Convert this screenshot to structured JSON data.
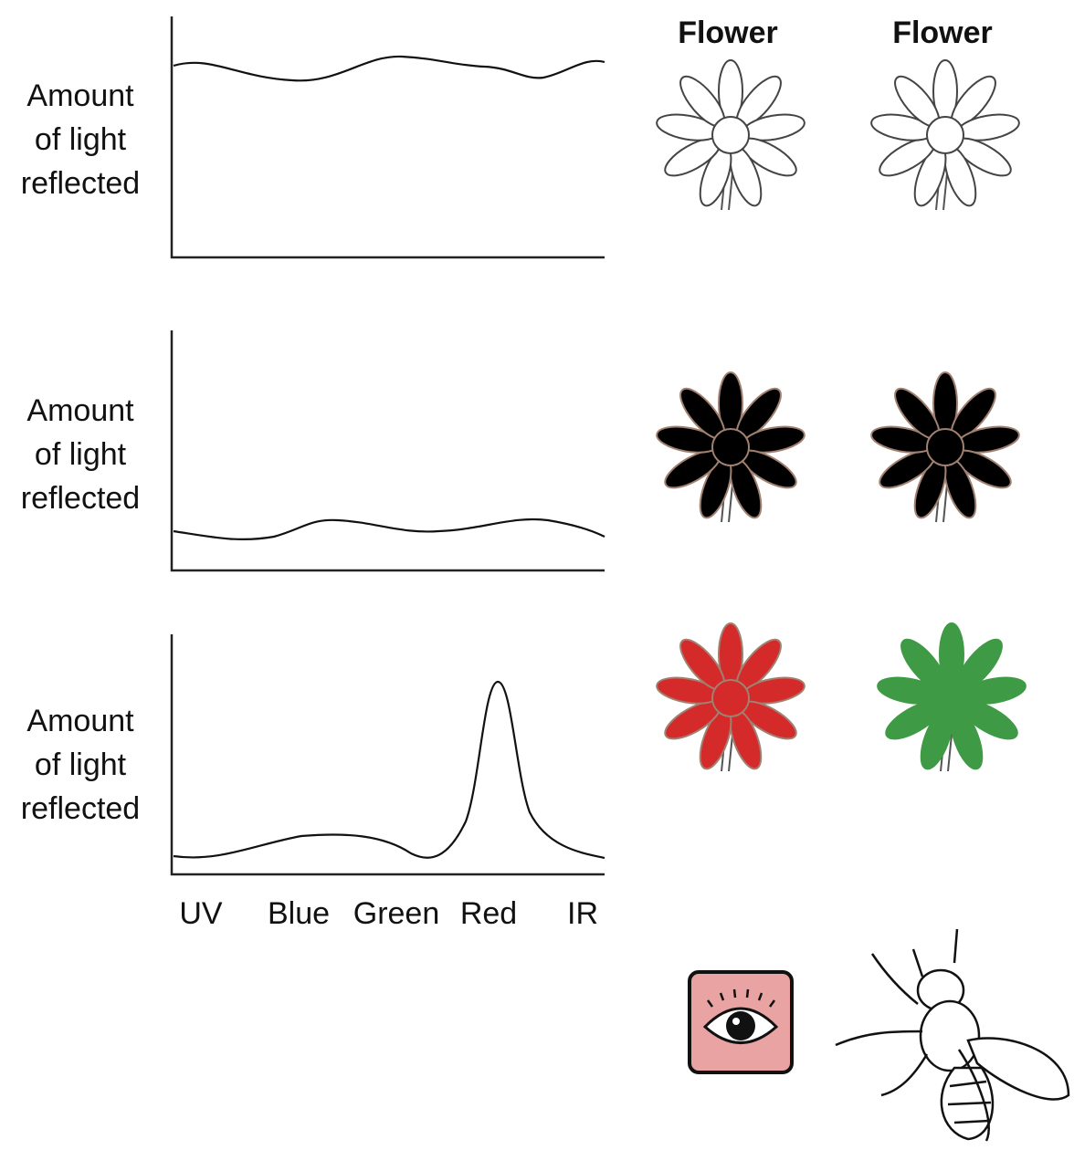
{
  "panels": [
    {
      "y_label": [
        "Amount",
        "of light",
        "reflected"
      ]
    },
    {
      "y_label": [
        "Amount",
        "of light",
        "reflected"
      ]
    },
    {
      "y_label": [
        "Amount",
        "of light",
        "reflected"
      ]
    }
  ],
  "x_labels": [
    "UV",
    "Blue",
    "Green",
    "Red",
    "IR"
  ],
  "flower_headers": [
    "Flower",
    "Flower"
  ]
}
